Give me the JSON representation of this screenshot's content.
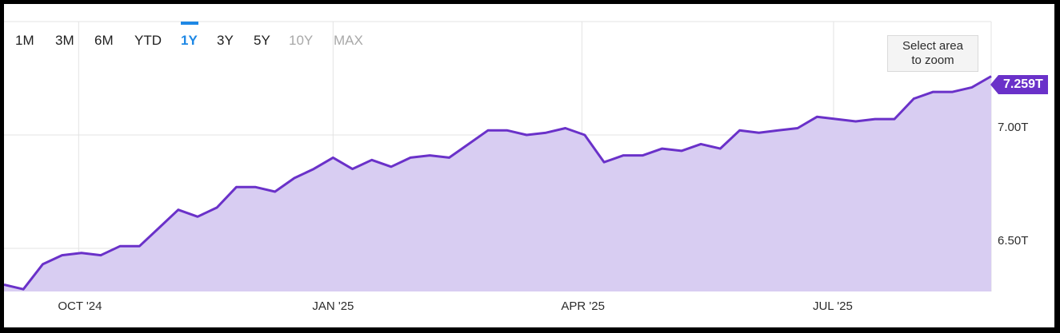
{
  "range_selector": {
    "options": [
      {
        "label": "1M",
        "state": "normal"
      },
      {
        "label": "3M",
        "state": "normal"
      },
      {
        "label": "6M",
        "state": "normal"
      },
      {
        "label": "YTD",
        "state": "normal"
      },
      {
        "label": "1Y",
        "state": "active"
      },
      {
        "label": "3Y",
        "state": "normal"
      },
      {
        "label": "5Y",
        "state": "normal"
      },
      {
        "label": "10Y",
        "state": "disabled"
      },
      {
        "label": "MAX",
        "state": "disabled"
      }
    ]
  },
  "zoom_hint": {
    "line1": "Select area",
    "line2": "to zoom"
  },
  "last_value_label": "7.259T",
  "colors": {
    "line": "#6a31c9",
    "area": "#d8cdf2",
    "grid": "#e3e3e3",
    "active": "#1e88e5",
    "badge": "#6a31c9"
  },
  "chart_data": {
    "type": "area",
    "y_unit": "T",
    "ylim": [
      6.31,
      7.5
    ],
    "yticks": [
      {
        "value": 6.5,
        "label": "6.50T"
      },
      {
        "value": 7.0,
        "label": "7.00T"
      }
    ],
    "xlim": [
      "2024-09-04",
      "2025-08-27"
    ],
    "xticks": [
      {
        "date": "2024-10-01",
        "label": "OCT '24"
      },
      {
        "date": "2025-01-01",
        "label": "JAN '25"
      },
      {
        "date": "2025-04-01",
        "label": "APR '25"
      },
      {
        "date": "2025-07-01",
        "label": "JUL '25"
      }
    ],
    "grid": true,
    "legend": "none",
    "series": [
      {
        "x": [
          "2024-09-04",
          "2024-09-11",
          "2024-09-18",
          "2024-09-25",
          "2024-10-02",
          "2024-10-09",
          "2024-10-16",
          "2024-10-23",
          "2024-10-30",
          "2024-11-06",
          "2024-11-13",
          "2024-11-20",
          "2024-11-27",
          "2024-12-04",
          "2024-12-11",
          "2024-12-18",
          "2024-12-25",
          "2025-01-01",
          "2025-01-08",
          "2025-01-15",
          "2025-01-22",
          "2025-01-29",
          "2025-02-05",
          "2025-02-12",
          "2025-02-19",
          "2025-02-26",
          "2025-03-05",
          "2025-03-12",
          "2025-03-19",
          "2025-03-26",
          "2025-04-02",
          "2025-04-09",
          "2025-04-16",
          "2025-04-23",
          "2025-04-30",
          "2025-05-07",
          "2025-05-14",
          "2025-05-21",
          "2025-05-28",
          "2025-06-04",
          "2025-06-11",
          "2025-06-18",
          "2025-06-25",
          "2025-07-02",
          "2025-07-09",
          "2025-07-16",
          "2025-07-23",
          "2025-07-30",
          "2025-08-06",
          "2025-08-13",
          "2025-08-20",
          "2025-08-27"
        ],
        "values": [
          6.34,
          6.32,
          6.43,
          6.47,
          6.48,
          6.47,
          6.51,
          6.51,
          6.59,
          6.67,
          6.64,
          6.68,
          6.77,
          6.77,
          6.75,
          6.81,
          6.85,
          6.9,
          6.85,
          6.89,
          6.86,
          6.9,
          6.91,
          6.9,
          6.96,
          7.02,
          7.02,
          7.0,
          7.01,
          7.03,
          7.0,
          6.88,
          6.91,
          6.91,
          6.94,
          6.93,
          6.96,
          6.94,
          7.02,
          7.01,
          7.02,
          7.03,
          7.08,
          7.07,
          7.06,
          7.07,
          7.07,
          7.16,
          7.19,
          7.19,
          7.21,
          7.259
        ]
      }
    ]
  }
}
